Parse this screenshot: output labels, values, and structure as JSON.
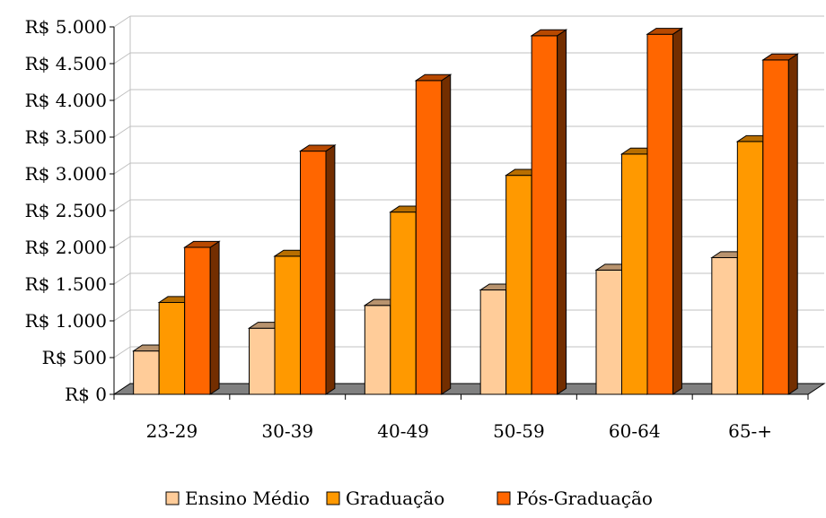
{
  "chart_data": {
    "type": "bar",
    "variant": "3d-clustered-column",
    "title": "",
    "xlabel": "",
    "ylabel": "",
    "categories": [
      "23-29",
      "30-39",
      "40-49",
      "50-59",
      "60-64",
      "65-+"
    ],
    "series": [
      {
        "name": "Ensino Médio",
        "color": "#FFCC99",
        "values": [
          590,
          900,
          1210,
          1420,
          1690,
          1860
        ]
      },
      {
        "name": "Graduação",
        "color": "#FF9900",
        "values": [
          1250,
          1880,
          2480,
          2980,
          3270,
          3440
        ]
      },
      {
        "name": "Pós-Graduação",
        "color": "#FF6600",
        "values": [
          2000,
          3310,
          4270,
          4880,
          4900,
          4550
        ]
      }
    ],
    "ylim": [
      0,
      5000
    ],
    "yticks": [
      {
        "value": 0,
        "label": "R$ 0"
      },
      {
        "value": 500,
        "label": "R$ 500"
      },
      {
        "value": 1000,
        "label": "R$ 1.000"
      },
      {
        "value": 1500,
        "label": "R$ 1.500"
      },
      {
        "value": 2000,
        "label": "R$ 2.000"
      },
      {
        "value": 2500,
        "label": "R$ 2.500"
      },
      {
        "value": 3000,
        "label": "R$ 3.000"
      },
      {
        "value": 3500,
        "label": "R$ 3.500"
      },
      {
        "value": 4000,
        "label": "R$ 4.000"
      },
      {
        "value": 4500,
        "label": "R$ 4.500"
      },
      {
        "value": 5000,
        "label": "R$ 5.000"
      }
    ],
    "grid": true,
    "legend_position": "bottom",
    "floor_color": "#808080",
    "grid_color": "#C0C0C0"
  }
}
